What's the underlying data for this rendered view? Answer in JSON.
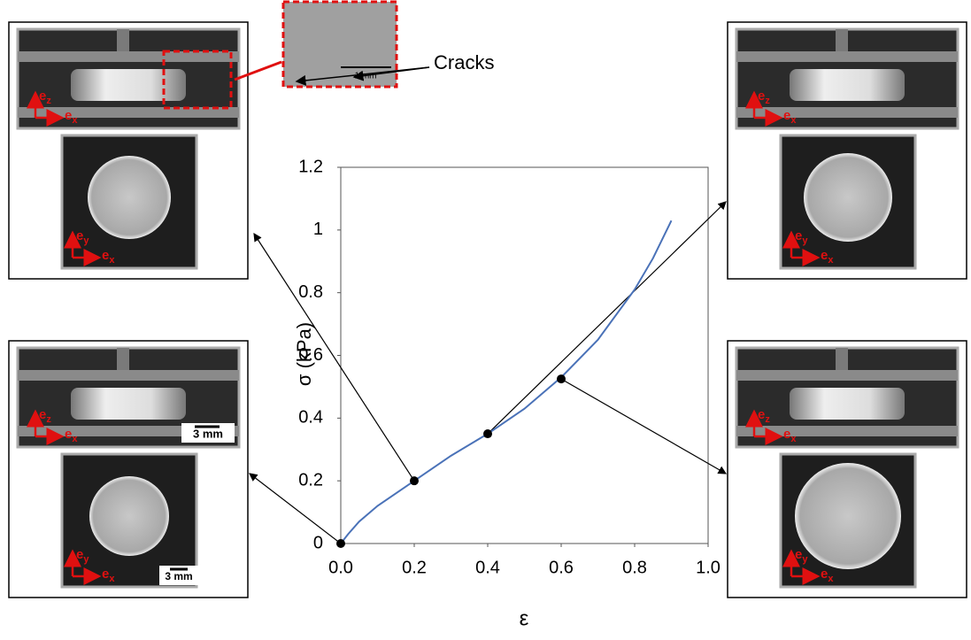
{
  "chart_data": {
    "type": "line",
    "x_label": "ε",
    "y_label": "σ (kPa)",
    "xlim": [
      0,
      1
    ],
    "ylim": [
      0,
      1.2
    ],
    "xticks": [
      {
        "value": 0,
        "label": "0.0"
      },
      {
        "value": 0.2,
        "label": "0.2"
      },
      {
        "value": 0.4,
        "label": "0.4"
      },
      {
        "value": 0.6,
        "label": "0.6"
      },
      {
        "value": 0.8,
        "label": "0.8"
      },
      {
        "value": 1,
        "label": "1.0"
      }
    ],
    "yticks": [
      0,
      0.2,
      0.4,
      0.6,
      0.8,
      1,
      1.2
    ],
    "series": [
      {
        "color": "#4a72b8",
        "x": [
          0,
          0.02,
          0.05,
          0.1,
          0.2,
          0.3,
          0.4,
          0.5,
          0.6,
          0.7,
          0.8,
          0.85,
          0.9
        ],
        "values": [
          0,
          0.03,
          0.07,
          0.12,
          0.2,
          0.28,
          0.35,
          0.43,
          0.53,
          0.65,
          0.81,
          0.91,
          1.03
        ]
      },
      {
        "color": "#000000",
        "type": "scatter",
        "x": [
          0,
          0.2,
          0.4,
          0.6
        ],
        "values": [
          0,
          0.2,
          0.35,
          0.525
        ]
      }
    ],
    "annotations": {
      "cracks": "Cracks",
      "inset_scale": "1 mm",
      "scale_bar": "3 mm",
      "basis_symbol": "e",
      "basis_subscripts": [
        "x",
        "y",
        "z"
      ]
    }
  }
}
